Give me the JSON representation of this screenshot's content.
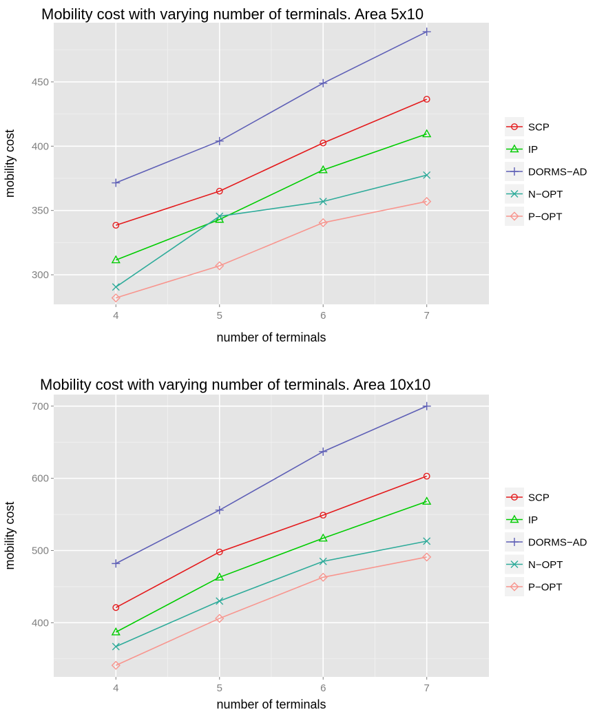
{
  "chart_data": [
    {
      "type": "line",
      "title": "Mobility cost with varying number of terminals. Area 5x10",
      "xlabel": "number of terminals",
      "ylabel": "mobility cost",
      "x": [
        4,
        5,
        6,
        7
      ],
      "x_ticks": [
        "4",
        "5",
        "6",
        "7"
      ],
      "xlim": [
        3.4,
        7.6
      ],
      "y_ticks": [
        300,
        350,
        400,
        450
      ],
      "y_tick_labels": [
        "300",
        "350",
        "400",
        "450"
      ],
      "ylim": [
        277,
        496
      ],
      "grid": true,
      "legend_position": "right",
      "series": [
        {
          "name": "SCP",
          "color": "#F8766D",
          "line_color": "#E41A1C",
          "marker": "circle",
          "values": [
            338.5,
            365,
            402.5,
            436.5
          ]
        },
        {
          "name": "IP",
          "color": "#00BA38",
          "line_color": "#00CC00",
          "marker": "triangle",
          "values": [
            311.5,
            343,
            381.5,
            409.5
          ]
        },
        {
          "name": "DORMS−AD",
          "color": "#5E5FB6",
          "line_color": "#5E5FB6",
          "marker": "plus",
          "values": [
            371.5,
            404,
            449,
            489
          ]
        },
        {
          "name": "N−OPT",
          "color": "#2EAB9A",
          "line_color": "#2EAB9A",
          "marker": "x",
          "values": [
            290.5,
            345.5,
            357,
            377.5
          ]
        },
        {
          "name": "P−OPT",
          "color": "#F8958E",
          "line_color": "#F8958E",
          "marker": "diamond",
          "values": [
            282,
            307,
            340.5,
            357
          ]
        }
      ]
    },
    {
      "type": "line",
      "title": "Mobility cost with varying number of terminals. Area 10x10",
      "xlabel": "number of terminals",
      "ylabel": "mobility cost",
      "x": [
        4,
        5,
        6,
        7
      ],
      "x_ticks": [
        "4",
        "5",
        "6",
        "7"
      ],
      "xlim": [
        3.4,
        7.6
      ],
      "y_ticks": [
        400,
        500,
        600,
        700
      ],
      "y_tick_labels": [
        "400",
        "500",
        "600",
        "700"
      ],
      "ylim": [
        325,
        716
      ],
      "grid": true,
      "legend_position": "right",
      "series": [
        {
          "name": "SCP",
          "color": "#E41A1C",
          "line_color": "#E41A1C",
          "marker": "circle",
          "values": [
            421,
            498,
            549,
            603
          ]
        },
        {
          "name": "IP",
          "color": "#00CC00",
          "line_color": "#00CC00",
          "marker": "triangle",
          "values": [
            387,
            463,
            517,
            568
          ]
        },
        {
          "name": "DORMS−AD",
          "color": "#5E5FB6",
          "line_color": "#5E5FB6",
          "marker": "plus",
          "values": [
            482,
            556,
            637,
            700
          ]
        },
        {
          "name": "N−OPT",
          "color": "#2EAB9A",
          "line_color": "#2EAB9A",
          "marker": "x",
          "values": [
            367,
            430,
            485,
            513
          ]
        },
        {
          "name": "P−OPT",
          "color": "#F8958E",
          "line_color": "#F8958E",
          "marker": "diamond",
          "values": [
            341,
            406,
            463,
            491
          ]
        }
      ]
    }
  ]
}
